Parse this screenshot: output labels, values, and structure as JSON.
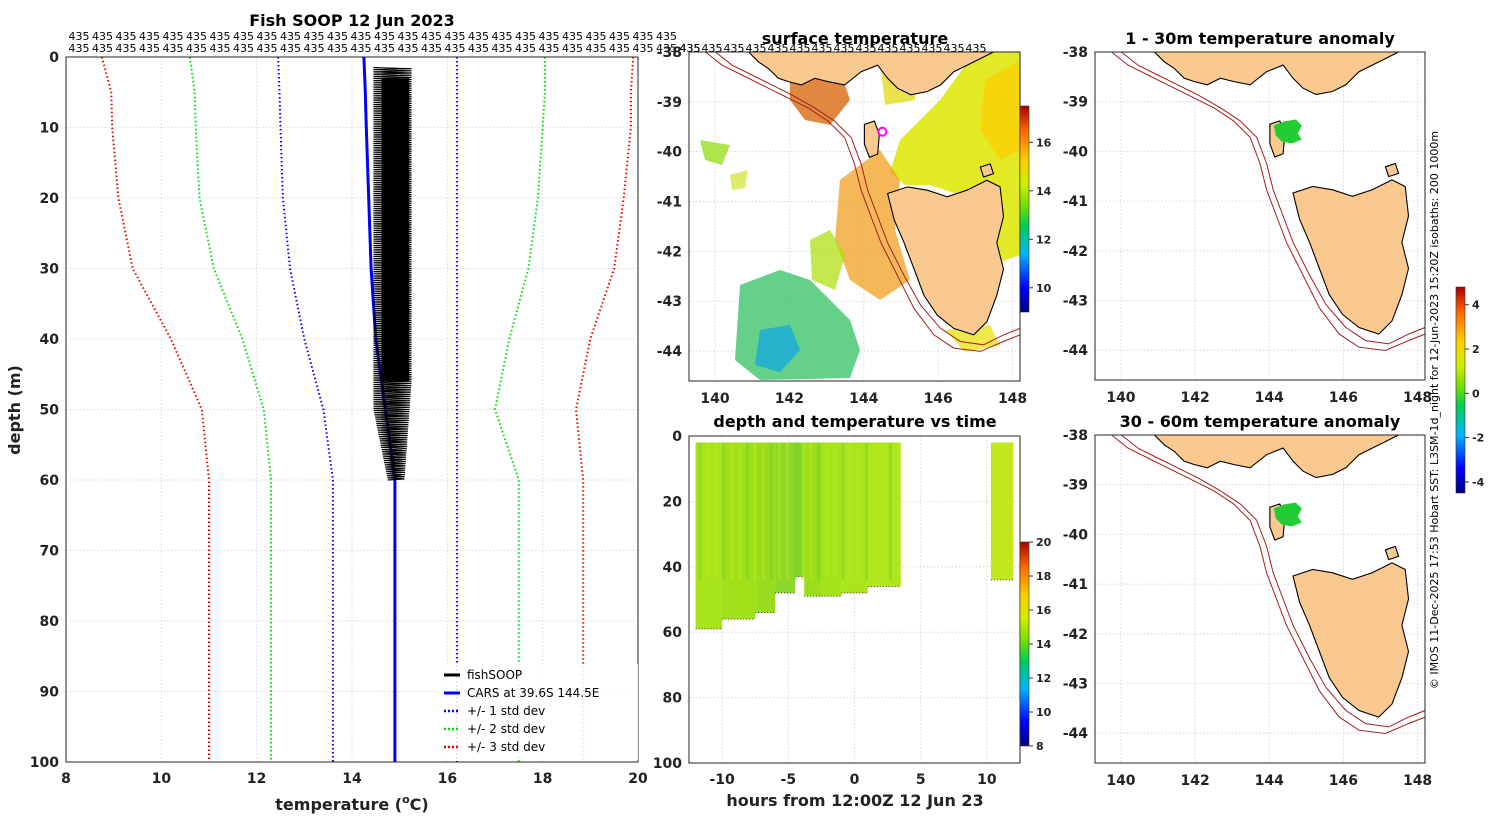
{
  "colors": {
    "fishsoop": "#000000",
    "cars": "#0000ff",
    "std1": "#0000ff",
    "std2": "#00dd00",
    "std3": "#ee0000",
    "land": "#f9c990",
    "isobath": "#a02020",
    "marker": "#ff00ff"
  },
  "icons": [
    "circle-marker-icon"
  ],
  "profile": {
    "chart_data": {
      "type": "line",
      "title": "Fish SOOP 12 Jun 2023",
      "xlabel": "temperature (",
      "xlabel_super": "o",
      "xlabel_unit": "C)",
      "ylabel": "depth (m)",
      "xlim": [
        8,
        20
      ],
      "ylim": [
        100,
        0
      ],
      "x_ticks": [
        "8",
        "10",
        "12",
        "14",
        "16",
        "18",
        "20"
      ],
      "y_ticks": [
        "0",
        "10",
        "20",
        "30",
        "40",
        "50",
        "60",
        "70",
        "80",
        "90",
        "100"
      ],
      "top_labels_row1": [
        "435",
        "435",
        "435",
        "435",
        "435",
        "435",
        "435",
        "435",
        "435",
        "435",
        "435",
        "435",
        "435",
        "435",
        "435",
        "435",
        "435",
        "435",
        "435",
        "435",
        "435",
        "435",
        "435",
        "435",
        "435",
        "435"
      ],
      "top_labels_row2": [
        "435",
        "435",
        "435",
        "435",
        "435",
        "435",
        "435",
        "435",
        "435",
        "435",
        "435",
        "435",
        "435",
        "435",
        "435",
        "435",
        "435",
        "435",
        "435",
        "435",
        "435",
        "435",
        "435",
        "435",
        "435",
        "435",
        "435"
      ],
      "legend": [
        "fishSOOP",
        "CARS at 39.6S 144.5E",
        "+/- 1 std dev",
        "+/- 2 std dev",
        "+/- 3 std dev"
      ],
      "depth": [
        0,
        5,
        10,
        20,
        30,
        40,
        50,
        60,
        100
      ],
      "series": [
        {
          "name": "CARS",
          "values": [
            14.25,
            14.28,
            14.3,
            14.35,
            14.4,
            14.5,
            14.7,
            14.9,
            14.9
          ]
        },
        {
          "name": "-1 std",
          "values": [
            12.45,
            12.48,
            12.5,
            12.55,
            12.7,
            13.0,
            13.4,
            13.6,
            13.6
          ]
        },
        {
          "name": "+1 std",
          "values": [
            16.2,
            16.2,
            16.2,
            16.2,
            16.2,
            16.2,
            16.2,
            16.2,
            16.2
          ]
        },
        {
          "name": "-2 std",
          "values": [
            10.6,
            10.7,
            10.72,
            10.8,
            11.1,
            11.7,
            12.15,
            12.3,
            12.3
          ]
        },
        {
          "name": "+2 std",
          "values": [
            18.05,
            18.05,
            18.0,
            17.9,
            17.7,
            17.3,
            17.0,
            17.5,
            17.5
          ]
        },
        {
          "name": "-3 std",
          "values": [
            8.75,
            8.95,
            8.97,
            9.1,
            9.4,
            10.2,
            10.85,
            11.0,
            11.0
          ]
        },
        {
          "name": "+3 std",
          "values": [
            19.9,
            19.85,
            19.85,
            19.7,
            19.5,
            19.0,
            18.7,
            18.85,
            18.85
          ]
        }
      ],
      "fishsoop_range": {
        "tmin": 14.45,
        "tmax": 15.25,
        "depth_min": 1.5,
        "depth_max": 60
      }
    }
  },
  "sst": {
    "chart_data": {
      "type": "heatmap",
      "title": "surface temperature",
      "x_ticks": [
        "140",
        "142",
        "144",
        "146",
        "148"
      ],
      "y_ticks": [
        "-38",
        "-39",
        "-40",
        "-41",
        "-42",
        "-43",
        "-44"
      ],
      "xlim": [
        139.3,
        148.2
      ],
      "ylim": [
        -44.6,
        -38
      ],
      "top_labels": [
        "435",
        "435",
        "435",
        "435",
        "435",
        "435",
        "435",
        "435",
        "435",
        "435",
        "435",
        "435",
        "435",
        "435"
      ],
      "colorbar_ticks": [
        "16",
        "14",
        "12",
        "10"
      ],
      "colorbar_range": [
        9,
        17.5
      ],
      "marker": {
        "lon": 144.5,
        "lat": -39.6
      }
    }
  },
  "section": {
    "chart_data": {
      "type": "heatmap",
      "title": "depth and temperature vs time",
      "xlabel": "hours from 12:00Z 12 Jun 23",
      "x_ticks": [
        "-10",
        "-5",
        "0",
        "5",
        "10"
      ],
      "y_ticks": [
        "0",
        "20",
        "40",
        "60",
        "80",
        "100"
      ],
      "xlim": [
        -12.5,
        12.5
      ],
      "ylim": [
        100,
        0
      ],
      "colorbar_ticks": [
        "20",
        "18",
        "16",
        "14",
        "12",
        "10",
        "8"
      ],
      "colorbar_range": [
        8,
        20
      ],
      "segments": [
        {
          "t0": -12,
          "t1": -10,
          "depth_max": 59
        },
        {
          "t0": -10,
          "t1": -7.5,
          "depth_max": 56
        },
        {
          "t0": -7.5,
          "t1": -6,
          "depth_max": 54
        },
        {
          "t0": -6,
          "t1": -4.5,
          "depth_max": 48
        },
        {
          "t0": -4.5,
          "t1": -3.8,
          "depth_max": 43
        },
        {
          "t0": -3.8,
          "t1": -2.5,
          "depth_max": 49
        },
        {
          "t0": -2.5,
          "t1": -1,
          "depth_max": 49
        },
        {
          "t0": -1,
          "t1": 1,
          "depth_max": 48
        },
        {
          "t0": 1,
          "t1": 3.5,
          "depth_max": 46
        },
        {
          "t0": 10.3,
          "t1": 12,
          "depth_max": 44
        }
      ]
    }
  },
  "anom1": {
    "chart_data": {
      "type": "heatmap",
      "title": "1 - 30m temperature anomaly",
      "x_ticks": [
        "140",
        "142",
        "144",
        "146",
        "148"
      ],
      "y_ticks": [
        "-38",
        "-39",
        "-40",
        "-41",
        "-42",
        "-43",
        "-44"
      ],
      "xlim": [
        139.3,
        148.2
      ],
      "ylim": [
        -44.6,
        -38
      ]
    }
  },
  "anom2": {
    "chart_data": {
      "type": "heatmap",
      "title": "30 - 60m temperature anomaly",
      "x_ticks": [
        "140",
        "142",
        "144",
        "146",
        "148"
      ],
      "y_ticks": [
        "-38",
        "-39",
        "-40",
        "-41",
        "-42",
        "-43",
        "-44"
      ],
      "xlim": [
        139.3,
        148.2
      ],
      "ylim": [
        -44.6,
        -38
      ]
    }
  },
  "anom_colorbar": {
    "ticks": [
      "4",
      "2",
      "0",
      "-2",
      "-4"
    ],
    "range": [
      -4.5,
      4.8
    ]
  },
  "footer": {
    "credit": "© IMOS 11-Dec-2025 17:53 Hobart SST: L3SM-1d_night for 12-Jun-2023 15:20Z isobaths: 200  1000m"
  }
}
